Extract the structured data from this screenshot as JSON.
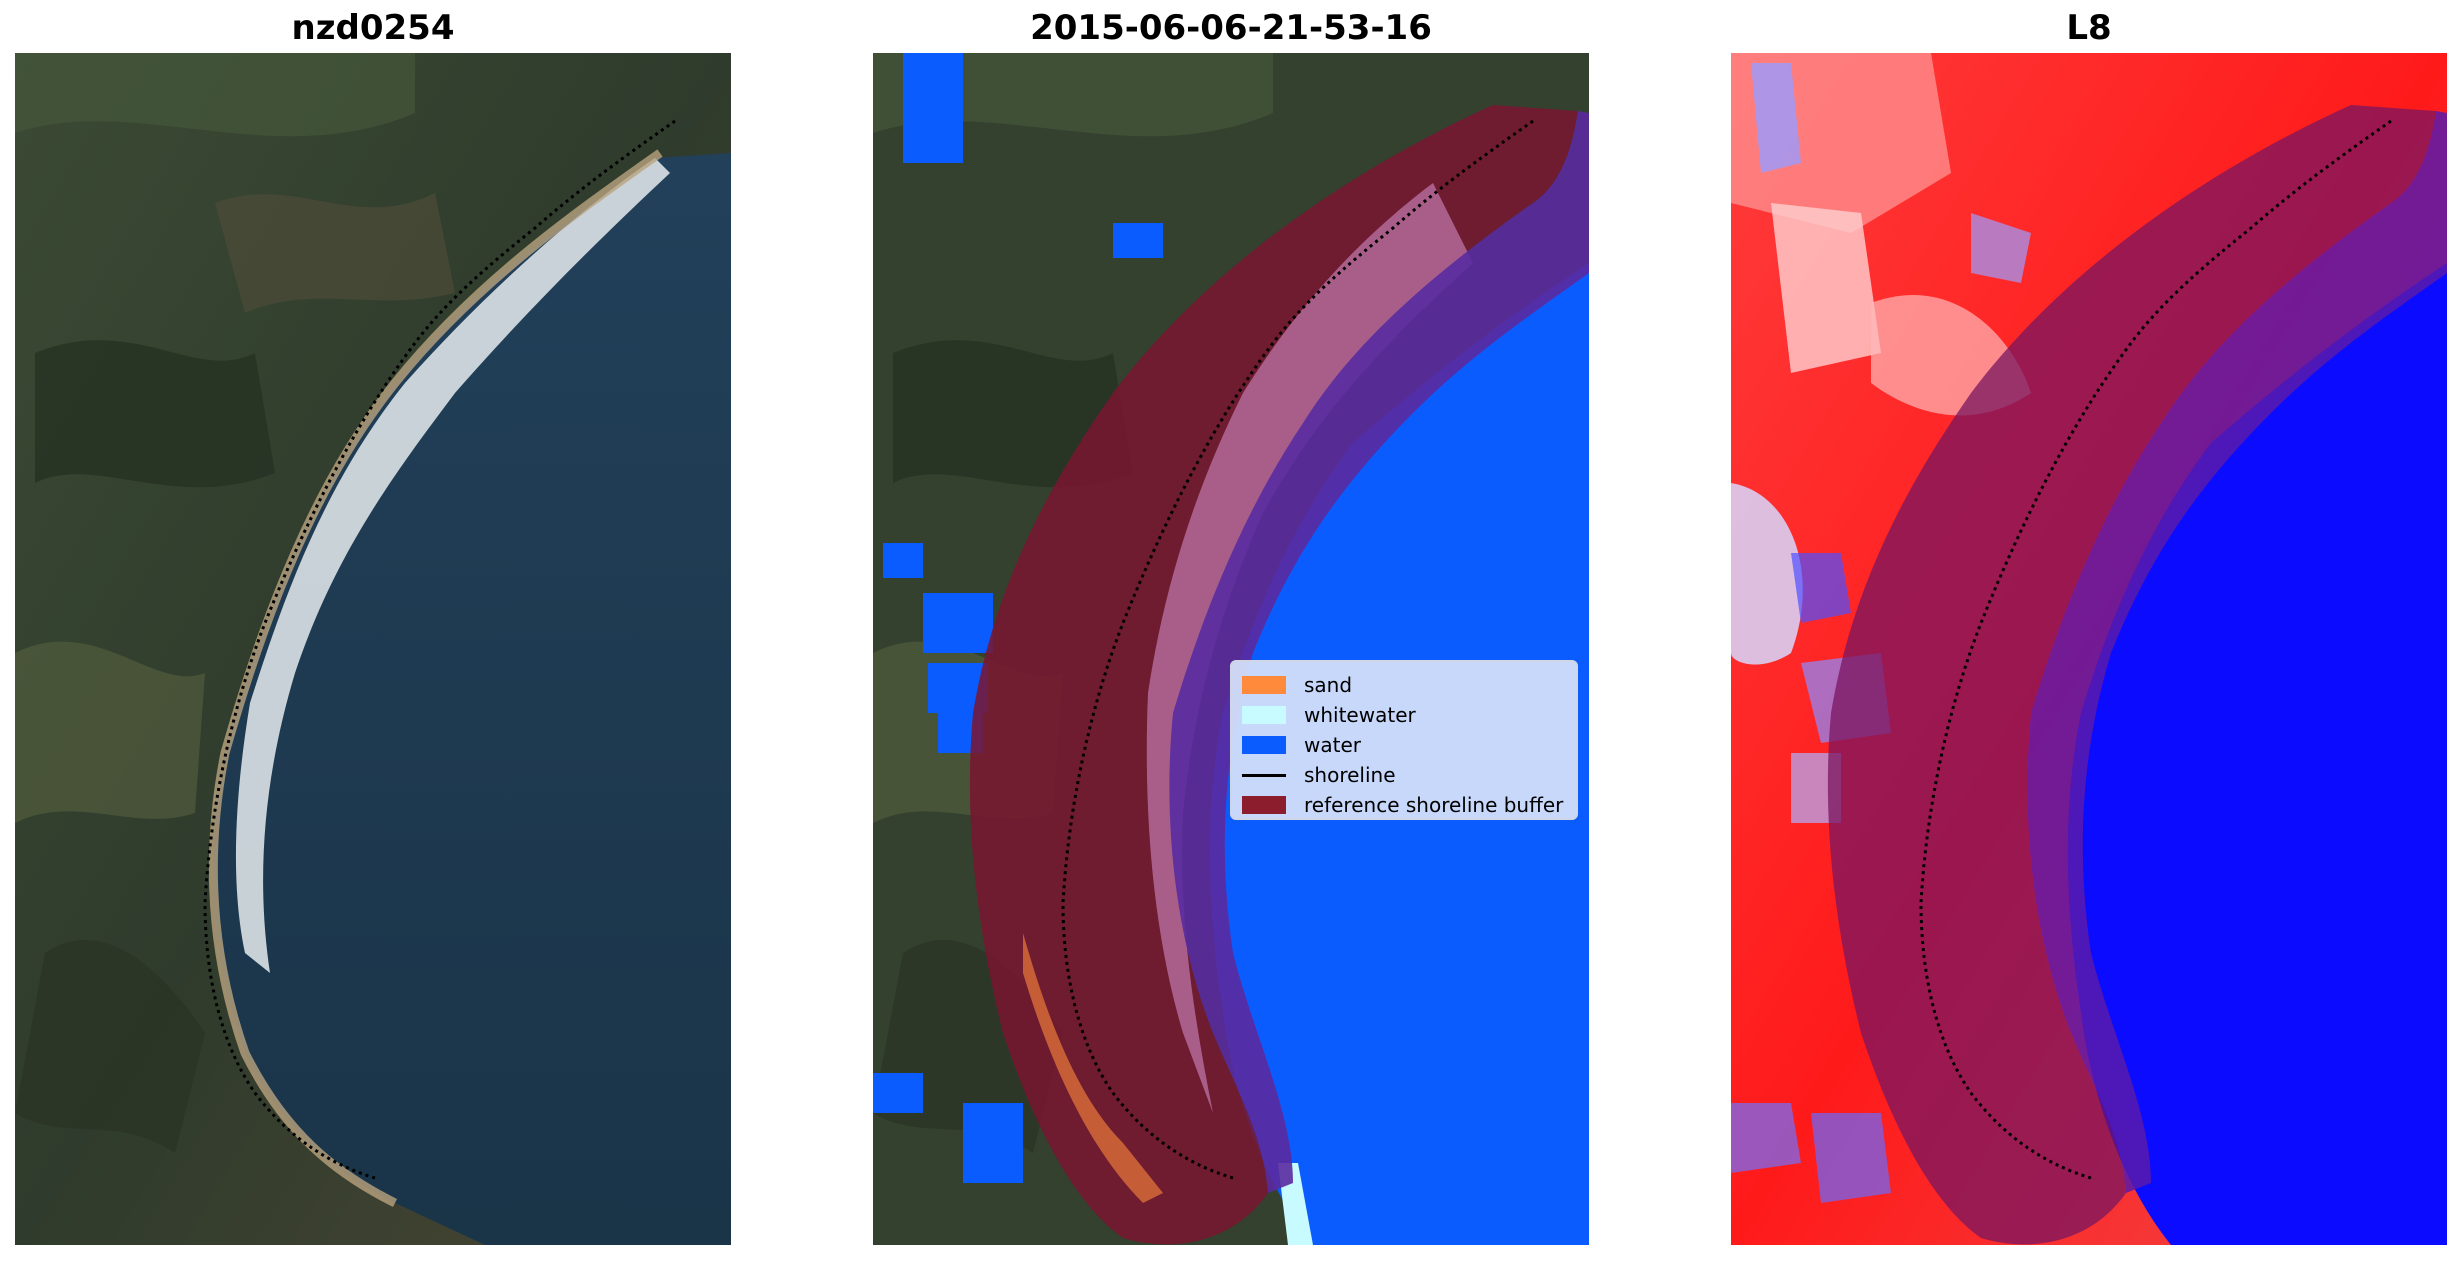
{
  "panels": [
    {
      "title": "nzd0254"
    },
    {
      "title": "2015-06-06-21-53-16"
    },
    {
      "title": "L8"
    }
  ],
  "legend": {
    "items": [
      {
        "label": "sand",
        "color": "#ff8a3c",
        "kind": "patch"
      },
      {
        "label": "whitewater",
        "color": "#c8fbff",
        "kind": "patch"
      },
      {
        "label": "water",
        "color": "#0a5cff",
        "kind": "patch"
      },
      {
        "label": "shoreline",
        "color": "#000000",
        "kind": "line"
      },
      {
        "label": "reference shoreline buffer",
        "color": "#8b1d2c",
        "kind": "patch"
      }
    ]
  },
  "colors": {
    "water_class": "#0a5cff",
    "sea_rgb": "#1e3a52",
    "land_rgb": "#3a4630",
    "buffer": "#7a1530",
    "index_land": "#ff1a1a",
    "index_water": "#0b0bff"
  }
}
